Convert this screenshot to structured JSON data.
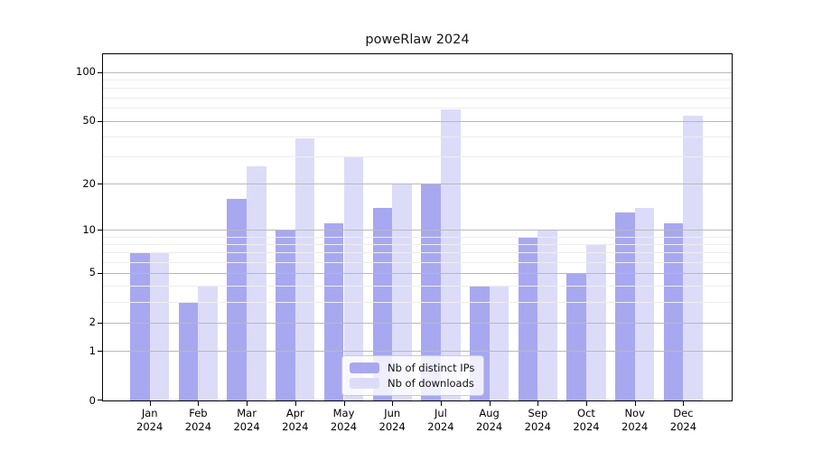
{
  "chart_data": {
    "type": "bar",
    "title": "poweRlaw 2024",
    "categories": [
      "Jan",
      "Feb",
      "Mar",
      "Apr",
      "May",
      "Jun",
      "Jul",
      "Aug",
      "Sep",
      "Oct",
      "Nov",
      "Dec"
    ],
    "x_year_label": "2024",
    "series": [
      {
        "name": "Nb of distinct IPs",
        "color": "#a8a8f0",
        "values": [
          7,
          3,
          16,
          10,
          11,
          14,
          20,
          4,
          9,
          5,
          13,
          11
        ]
      },
      {
        "name": "Nb of downloads",
        "color": "#dcdcf9",
        "values": [
          7,
          4,
          26,
          39,
          30,
          20,
          59,
          4,
          10,
          8,
          14,
          54
        ]
      }
    ],
    "y_axis": {
      "scale": "log1p",
      "tick_labels": [
        "100",
        "50",
        "20",
        "10",
        "5",
        "2",
        "1",
        "0"
      ],
      "tick_values": [
        100,
        50,
        20,
        10,
        5,
        2,
        1,
        0
      ],
      "major_gridlines": [
        1,
        2,
        5,
        10,
        20,
        50,
        100
      ],
      "minor_gridlines": [
        3,
        4,
        6,
        7,
        8,
        9,
        30,
        40,
        60,
        70,
        80,
        90
      ],
      "range_max": 100
    },
    "legend_position": "bottom-center",
    "grid": true
  },
  "colors": {
    "bar_distinct_ips": "#a8a8f0",
    "bar_downloads": "#dcdcf9",
    "major_grid": "#b9b9b9",
    "minor_grid": "#ededed",
    "axis": "#000000",
    "legend_border": "#cccccc"
  }
}
